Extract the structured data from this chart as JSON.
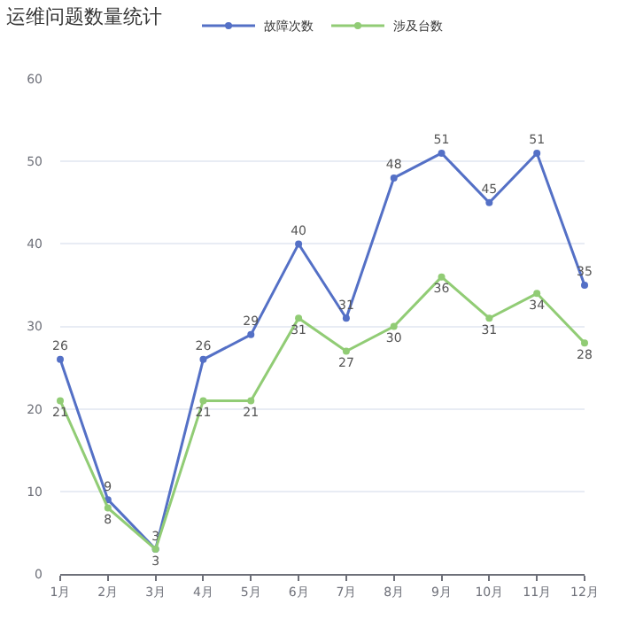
{
  "chart_data": {
    "type": "line",
    "title": "运维问题数量统计",
    "categories": [
      "1月",
      "2月",
      "3月",
      "4月",
      "5月",
      "6月",
      "7月",
      "8月",
      "9月",
      "10月",
      "11月",
      "12月"
    ],
    "series": [
      {
        "name": "故障次数",
        "color": "#5470c6",
        "values": [
          26,
          9,
          3,
          26,
          29,
          40,
          31,
          48,
          51,
          45,
          51,
          35
        ]
      },
      {
        "name": "涉及台数",
        "color": "#91cc75",
        "values": [
          21,
          8,
          3,
          21,
          21,
          31,
          27,
          30,
          36,
          31,
          34,
          28
        ]
      }
    ],
    "ylim": [
      0,
      60
    ],
    "yticks": [
      0,
      10,
      20,
      30,
      40,
      50,
      60
    ],
    "grid": "y",
    "legend": "top",
    "marker": "circle",
    "line_style": "solid",
    "data_labels": true
  }
}
